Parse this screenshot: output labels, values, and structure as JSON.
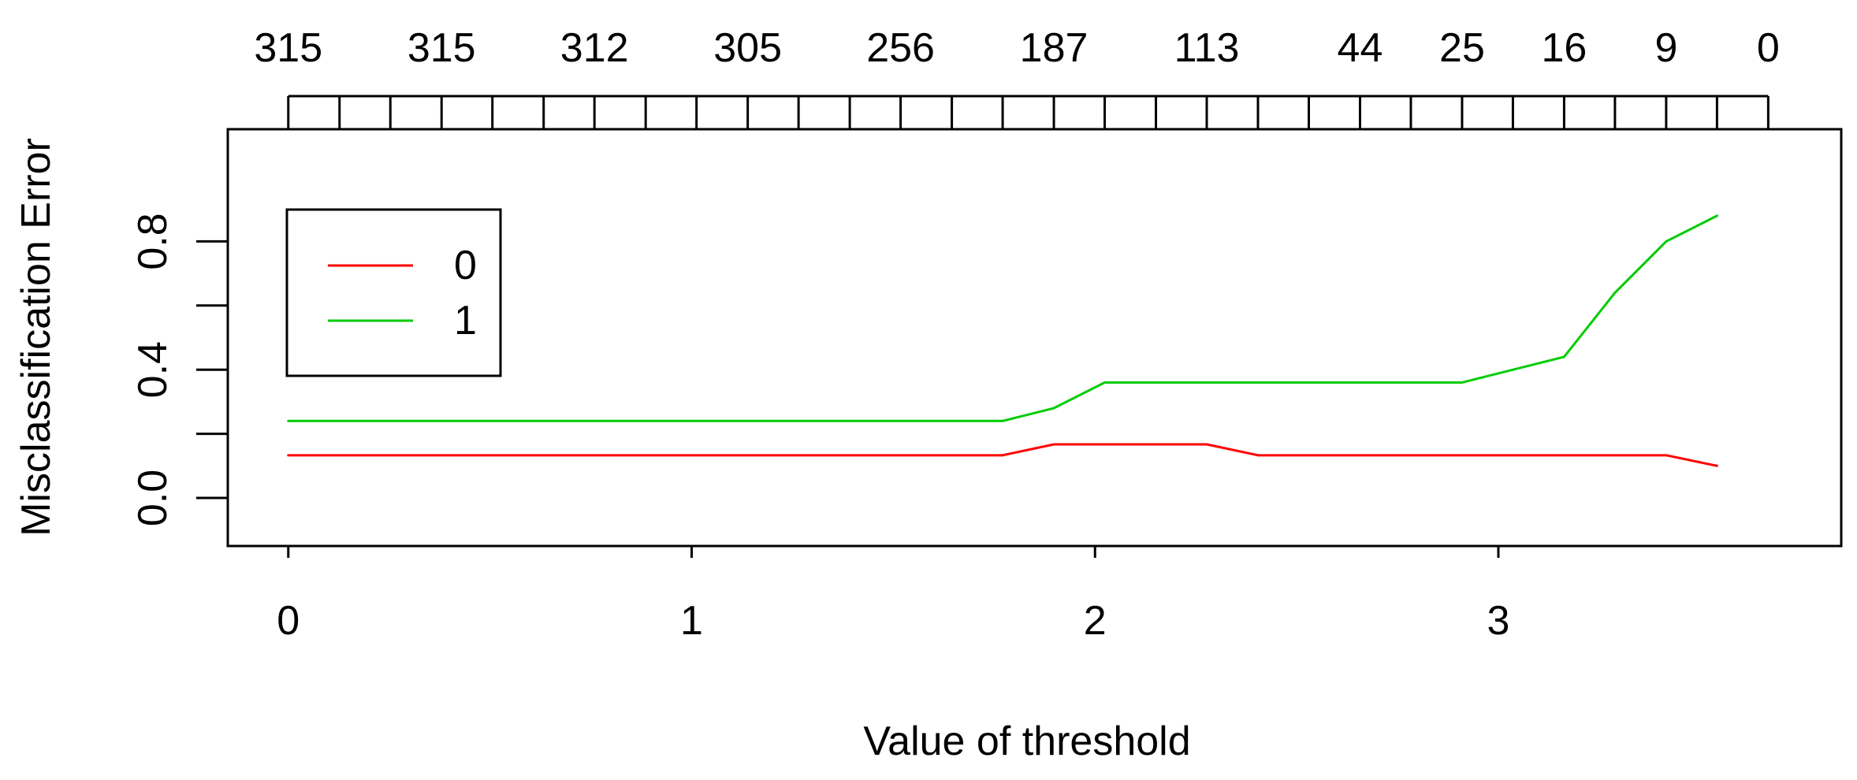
{
  "chart_data": {
    "type": "line",
    "xlabel": "Value of threshold",
    "ylabel": "Misclassification Error",
    "xlim": [
      -0.15,
      3.85
    ],
    "ylim": [
      -0.15,
      1.15
    ],
    "x_ticks": [
      0,
      1,
      2,
      3
    ],
    "x_tick_labels": [
      "0",
      "1",
      "2",
      "3"
    ],
    "y_ticks": [
      0.0,
      0.2,
      0.4,
      0.6,
      0.8
    ],
    "y_tick_labels": [
      "0.0",
      "",
      "0.4",
      "",
      "0.8"
    ],
    "top_axis": {
      "ticks": [
        0,
        0.127,
        0.253,
        0.38,
        0.506,
        0.633,
        0.759,
        0.886,
        1.012,
        1.139,
        1.265,
        1.392,
        1.518,
        1.645,
        1.771,
        1.898,
        2.024,
        2.151,
        2.277,
        2.404,
        2.53,
        2.657,
        2.783,
        2.91,
        3.036,
        3.163,
        3.289,
        3.416,
        3.542,
        3.669
      ],
      "labels": [
        {
          "x": 0,
          "text": "315"
        },
        {
          "x": 0.38,
          "text": "315"
        },
        {
          "x": 0.759,
          "text": "312"
        },
        {
          "x": 1.139,
          "text": "305"
        },
        {
          "x": 1.518,
          "text": "256"
        },
        {
          "x": 1.898,
          "text": "187"
        },
        {
          "x": 2.277,
          "text": "113"
        },
        {
          "x": 2.657,
          "text": "44"
        },
        {
          "x": 2.91,
          "text": "25"
        },
        {
          "x": 3.163,
          "text": "16"
        },
        {
          "x": 3.416,
          "text": "9"
        },
        {
          "x": 3.669,
          "text": "0"
        }
      ]
    },
    "series": [
      {
        "name": "0",
        "color": "#ff0000",
        "x": [
          0,
          1.771,
          1.898,
          2.277,
          2.404,
          3.416,
          3.542
        ],
        "y": [
          0.133,
          0.133,
          0.167,
          0.167,
          0.133,
          0.133,
          0.1
        ]
      },
      {
        "name": "1",
        "color": "#00cc00",
        "x": [
          0,
          1.771,
          1.898,
          2.024,
          2.91,
          3.163,
          3.289,
          3.416,
          3.542
        ],
        "y": [
          0.24,
          0.24,
          0.28,
          0.36,
          0.36,
          0.44,
          0.64,
          0.8,
          0.88
        ]
      }
    ],
    "legend": {
      "placement": "top-left",
      "entries": [
        "0",
        "1"
      ]
    }
  }
}
